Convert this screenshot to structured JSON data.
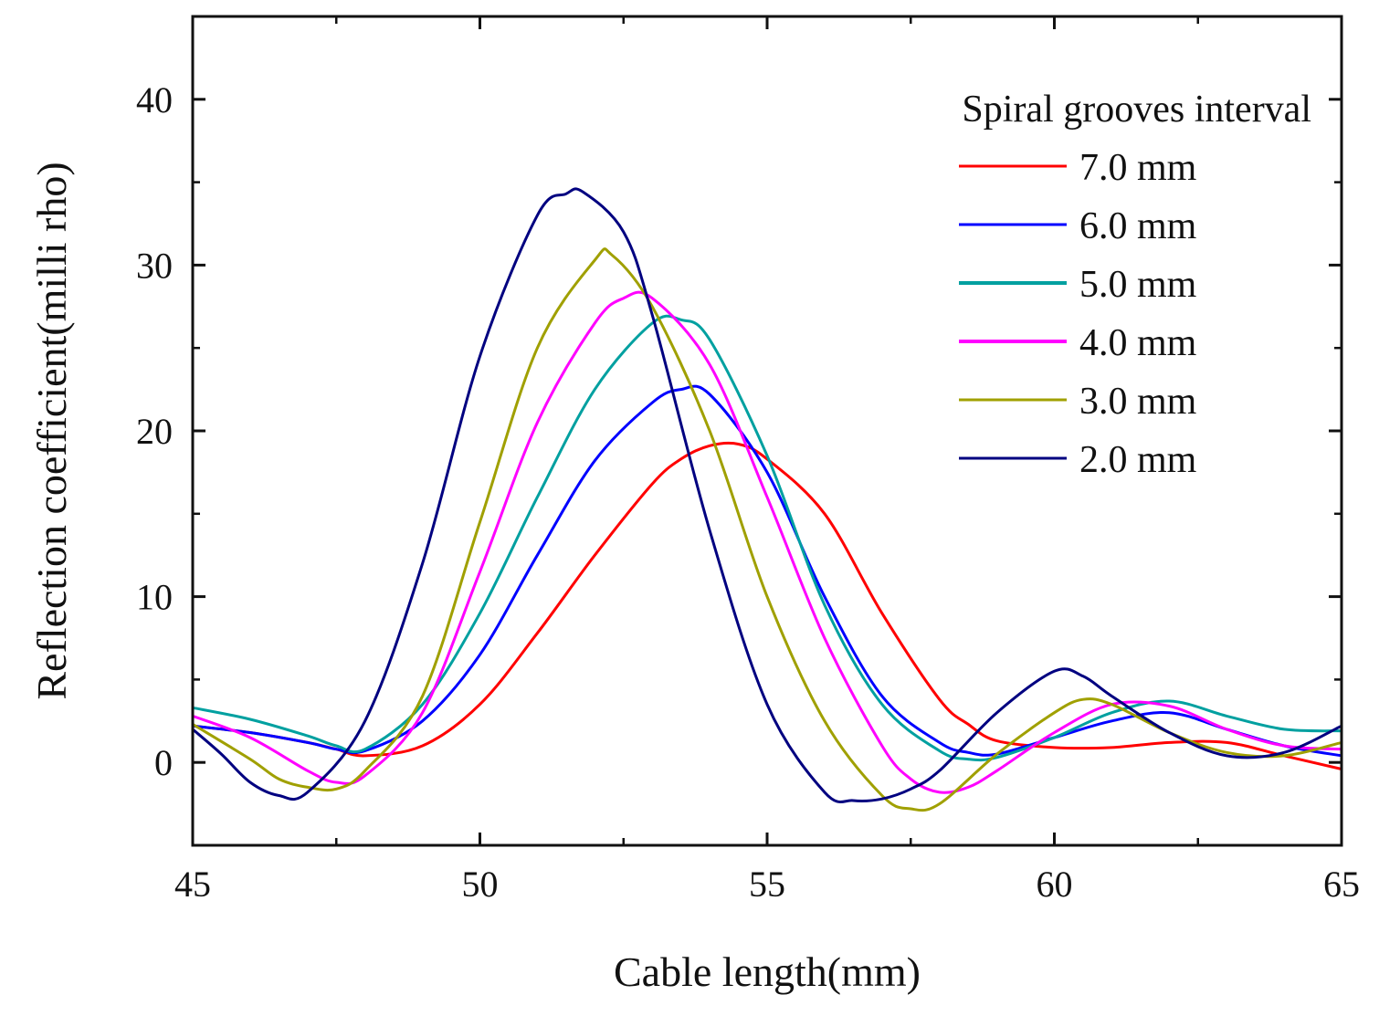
{
  "chart_data": {
    "type": "line",
    "title": "",
    "xlabel": "Cable length(mm)",
    "ylabel": "Reflection coefficient(milli rho)",
    "xlim": [
      45,
      65
    ],
    "ylim": [
      -5,
      45
    ],
    "xticks": [
      45,
      50,
      55,
      60,
      65
    ],
    "yticks": [
      0,
      10,
      20,
      30,
      40
    ],
    "xtick_labels": [
      "45",
      "50",
      "55",
      "60",
      "65"
    ],
    "ytick_labels": [
      "0",
      "10",
      "20",
      "30",
      "40"
    ],
    "grid": false,
    "legend": {
      "title": "Spiral grooves interval",
      "placement": "top-right"
    },
    "series": [
      {
        "name": "7.0 mm",
        "color": "#ff0000",
        "x": [
          45,
          46,
          47,
          47.5,
          48,
          49,
          50,
          51,
          52,
          53,
          53.5,
          54,
          54.5,
          55,
          56,
          57,
          58,
          58.5,
          59,
          60,
          61,
          62,
          63,
          64,
          65
        ],
        "y": [
          2.2,
          1.8,
          1.2,
          0.8,
          0.4,
          1.0,
          3.5,
          7.8,
          12.5,
          16.8,
          18.3,
          19.1,
          19.2,
          18.3,
          15.0,
          9.0,
          3.8,
          2.3,
          1.3,
          0.9,
          0.9,
          1.2,
          1.2,
          0.4,
          -0.4
        ]
      },
      {
        "name": "6.0 mm",
        "color": "#0000ff",
        "x": [
          45,
          46,
          47,
          47.5,
          48,
          49,
          50,
          51,
          52,
          53,
          53.5,
          54,
          55,
          56,
          57,
          58,
          58.5,
          59,
          60,
          61,
          62,
          63,
          64,
          65
        ],
        "y": [
          2.2,
          1.8,
          1.2,
          0.8,
          0.7,
          2.5,
          6.5,
          12.5,
          18.2,
          21.7,
          22.5,
          22.2,
          17.5,
          10.0,
          4.0,
          1.2,
          0.6,
          0.5,
          1.5,
          2.5,
          3.0,
          2.0,
          1.0,
          0.4
        ]
      },
      {
        "name": "5.0 mm",
        "color": "#00a0a0",
        "x": [
          45,
          46,
          47,
          47.5,
          48,
          49,
          50,
          51,
          52,
          53,
          53.5,
          54,
          55,
          56,
          57,
          58,
          58.5,
          59,
          60,
          61,
          62,
          63,
          64,
          65
        ],
        "y": [
          3.3,
          2.6,
          1.6,
          1.0,
          0.8,
          3.5,
          9.0,
          16.0,
          22.5,
          26.5,
          26.7,
          25.5,
          18.5,
          9.5,
          3.5,
          0.7,
          0.2,
          0.3,
          1.5,
          3.0,
          3.7,
          2.8,
          2.0,
          1.9
        ]
      },
      {
        "name": "4.0 mm",
        "color": "#ff00ff",
        "x": [
          45,
          46,
          47,
          47.5,
          48,
          49,
          50,
          51,
          52,
          52.5,
          53,
          54,
          55,
          56,
          57,
          57.5,
          58,
          58.5,
          59,
          60,
          61,
          62,
          63,
          64,
          65
        ],
        "y": [
          2.8,
          1.5,
          -0.5,
          -1.2,
          -0.8,
          3.0,
          11.5,
          20.5,
          26.5,
          28.0,
          28.0,
          24.0,
          16.0,
          7.5,
          1.0,
          -1.0,
          -1.8,
          -1.5,
          -0.5,
          1.8,
          3.5,
          3.4,
          2.0,
          1.0,
          0.8
        ]
      },
      {
        "name": "3.0 mm",
        "color": "#a0a000",
        "x": [
          45,
          46,
          46.5,
          47,
          47.5,
          48,
          49,
          50,
          51,
          52,
          52.3,
          53,
          54,
          55,
          56,
          57,
          57.5,
          58,
          59,
          60,
          60.5,
          61,
          62,
          63,
          64,
          65
        ],
        "y": [
          2.3,
          0.2,
          -1.0,
          -1.5,
          -1.6,
          -0.5,
          4.0,
          14.5,
          25.0,
          30.3,
          30.6,
          27.5,
          20.0,
          10.0,
          2.5,
          -2.0,
          -2.8,
          -2.5,
          0.5,
          3.0,
          3.8,
          3.5,
          1.8,
          0.6,
          0.4,
          1.2
        ]
      },
      {
        "name": "2.0 mm",
        "color": "#000080",
        "x": [
          45,
          45.5,
          46,
          46.5,
          47,
          48,
          49,
          50,
          51,
          51.5,
          51.8,
          52.5,
          53,
          54,
          55,
          56,
          56.5,
          57,
          57.5,
          58,
          59,
          60,
          60.5,
          61,
          62,
          63,
          64,
          65
        ],
        "y": [
          2.0,
          0.5,
          -1.2,
          -2.0,
          -1.8,
          2.5,
          12.0,
          24.5,
          33.0,
          34.3,
          34.4,
          32.0,
          27.0,
          14.0,
          3.5,
          -1.8,
          -2.3,
          -2.2,
          -1.6,
          -0.5,
          3.0,
          5.5,
          5.2,
          4.0,
          1.8,
          0.4,
          0.6,
          2.2
        ]
      }
    ]
  }
}
